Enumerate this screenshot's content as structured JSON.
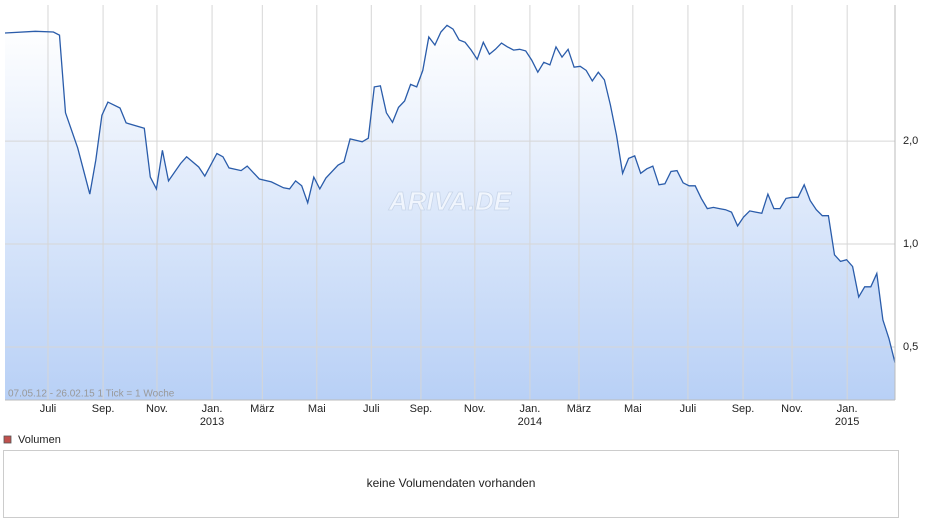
{
  "chart_data": {
    "type": "line",
    "annotation": "07.05.12 - 26.02.15   1 Tick = 1 Woche",
    "watermark": "ARIVA.DE",
    "x": [
      0,
      5,
      8,
      9,
      10,
      12,
      14,
      15,
      16,
      17,
      19,
      20,
      23,
      24,
      25,
      26,
      27,
      29,
      30,
      32,
      33,
      35,
      36,
      37,
      39,
      40,
      42,
      44,
      46,
      47,
      48,
      49,
      50,
      51,
      52,
      53,
      55,
      56,
      57,
      59,
      60,
      61,
      62,
      63,
      64,
      65,
      66,
      67,
      68,
      69,
      70,
      71,
      72,
      73,
      74,
      75,
      76,
      77,
      78,
      79,
      80,
      81,
      82,
      83,
      84,
      85,
      86,
      87,
      88,
      89,
      90,
      91,
      92,
      93,
      94,
      95,
      96,
      97,
      98,
      99,
      100,
      101,
      102,
      103,
      104,
      105,
      106,
      107,
      108,
      109,
      110,
      111,
      112,
      113,
      114,
      115,
      116,
      117,
      118,
      119,
      120,
      121,
      122,
      123,
      124,
      125,
      126,
      127,
      128,
      129,
      130,
      131,
      132,
      133,
      134,
      135,
      136,
      137,
      138,
      139,
      140,
      141,
      142,
      143,
      144,
      145,
      146,
      147
    ],
    "series": [
      {
        "color": "#2a5caa",
        "values": [
          4.14,
          4.19,
          4.17,
          4.08,
          2.42,
          1.91,
          1.4,
          1.76,
          2.38,
          2.6,
          2.5,
          2.26,
          2.18,
          1.57,
          1.45,
          1.88,
          1.53,
          1.72,
          1.8,
          1.68,
          1.58,
          1.84,
          1.8,
          1.67,
          1.64,
          1.69,
          1.55,
          1.52,
          1.46,
          1.45,
          1.53,
          1.48,
          1.32,
          1.57,
          1.45,
          1.56,
          1.7,
          1.74,
          2.03,
          1.99,
          2.04,
          2.88,
          2.9,
          2.42,
          2.27,
          2.51,
          2.62,
          2.93,
          2.88,
          3.22,
          4.03,
          3.82,
          4.17,
          4.36,
          4.25,
          3.95,
          3.89,
          3.69,
          3.47,
          3.89,
          3.59,
          3.71,
          3.87,
          3.77,
          3.69,
          3.71,
          3.67,
          3.45,
          3.18,
          3.4,
          3.34,
          3.77,
          3.52,
          3.71,
          3.29,
          3.31,
          3.22,
          3.0,
          3.18,
          3.02,
          2.55,
          2.08,
          1.61,
          1.78,
          1.81,
          1.61,
          1.66,
          1.69,
          1.49,
          1.5,
          1.63,
          1.64,
          1.51,
          1.48,
          1.48,
          1.36,
          1.27,
          1.28,
          1.27,
          1.26,
          1.24,
          1.13,
          1.2,
          1.25,
          1.24,
          1.23,
          1.4,
          1.27,
          1.27,
          1.36,
          1.37,
          1.37,
          1.49,
          1.34,
          1.26,
          1.21,
          1.21,
          0.93,
          0.89,
          0.9,
          0.86,
          0.7,
          0.75,
          0.75,
          0.82,
          0.6,
          0.53,
          0.45
        ]
      }
    ],
    "xlim": [
      0,
      147
    ],
    "xticks": [
      {
        "value": 7.1,
        "label": "Juli"
      },
      {
        "value": 16.2,
        "label": "Sep."
      },
      {
        "value": 25.1,
        "label": "Nov."
      },
      {
        "value": 34.2,
        "label": "Jan."
      },
      {
        "value": 42.5,
        "label": "März"
      },
      {
        "value": 51.5,
        "label": "Mai"
      },
      {
        "value": 60.5,
        "label": "Juli"
      },
      {
        "value": 68.7,
        "label": "Sep."
      },
      {
        "value": 77.6,
        "label": "Nov."
      },
      {
        "value": 86.7,
        "label": "Jan."
      },
      {
        "value": 94.8,
        "label": "März"
      },
      {
        "value": 103.7,
        "label": "Mai"
      },
      {
        "value": 112.8,
        "label": "Juli"
      },
      {
        "value": 121.9,
        "label": "Sep."
      },
      {
        "value": 130.0,
        "label": "Nov."
      },
      {
        "value": 139.1,
        "label": "Jan."
      }
    ],
    "year_labels": [
      {
        "value": 34.2,
        "label": "2013"
      },
      {
        "value": 86.7,
        "label": "2014"
      },
      {
        "value": 139.1,
        "label": "2015"
      }
    ],
    "ylim": [
      0.35,
      5
    ],
    "log_scale": true,
    "yticks": [
      {
        "value": 0.5,
        "label": "0,5"
      },
      {
        "value": 1,
        "label": "1,0"
      },
      {
        "value": 2,
        "label": "2,0"
      }
    ],
    "grid": true
  },
  "volume": {
    "legend": "Volumen",
    "color": "#c0504d",
    "message": "keine Volumendaten vorhanden"
  }
}
